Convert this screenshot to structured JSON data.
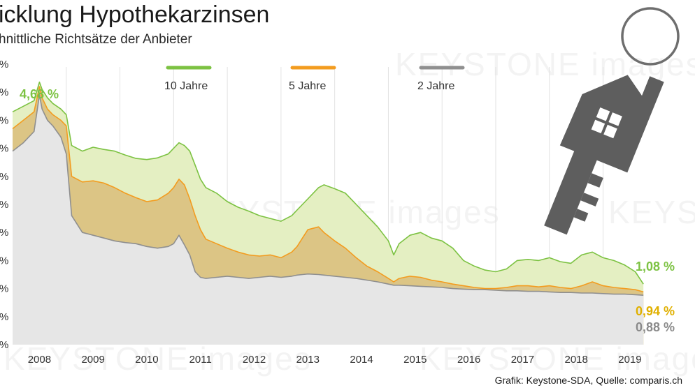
{
  "title": "icklung Hypothekarzinsen",
  "subtitle": "hnittliche Richtsätze der Anbieter",
  "credit": "Grafik: Keystone-SDA, Quelle: comparis.ch",
  "watermark": "KEYSTONE images",
  "y_tick_label": "%",
  "key_icon": "house-key-icon",
  "chart_data": {
    "type": "area",
    "xlabel": "",
    "ylabel": "",
    "xlim": [
      2007.5,
      2019.3
    ],
    "ylim": [
      0.0,
      5.0
    ],
    "categories": [
      "2008",
      "2009",
      "2010",
      "2011",
      "2012",
      "2013",
      "2014",
      "2015",
      "2016",
      "2017",
      "2018",
      "2019"
    ],
    "grid": "vertical",
    "legend_position": "top",
    "series": [
      {
        "name": "10 Jahre",
        "color": "#7cc242",
        "fill": "#e4efc2",
        "x": [
          2007.5,
          2007.7,
          2007.9,
          2008.0,
          2008.05,
          2008.15,
          2008.25,
          2008.4,
          2008.5,
          2008.6,
          2008.8,
          2009.0,
          2009.2,
          2009.4,
          2009.6,
          2009.8,
          2010.0,
          2010.2,
          2010.4,
          2010.5,
          2010.6,
          2010.7,
          2010.8,
          2010.9,
          2011.0,
          2011.1,
          2011.3,
          2011.5,
          2011.7,
          2011.9,
          2012.1,
          2012.3,
          2012.5,
          2012.7,
          2012.8,
          2012.9,
          2013.0,
          2013.2,
          2013.3,
          2013.5,
          2013.7,
          2013.9,
          2014.1,
          2014.3,
          2014.5,
          2014.6,
          2014.7,
          2014.9,
          2015.1,
          2015.3,
          2015.5,
          2015.7,
          2015.9,
          2016.1,
          2016.3,
          2016.5,
          2016.7,
          2016.9,
          2017.1,
          2017.3,
          2017.5,
          2017.7,
          2017.9,
          2018.1,
          2018.3,
          2018.5,
          2018.7,
          2018.9,
          2019.1,
          2019.25
        ],
        "values": [
          4.15,
          4.25,
          4.35,
          4.68,
          4.55,
          4.4,
          4.3,
          4.2,
          4.1,
          3.55,
          3.45,
          3.52,
          3.48,
          3.45,
          3.38,
          3.32,
          3.3,
          3.33,
          3.4,
          3.5,
          3.6,
          3.55,
          3.45,
          3.2,
          2.95,
          2.8,
          2.7,
          2.55,
          2.45,
          2.38,
          2.3,
          2.25,
          2.2,
          2.3,
          2.4,
          2.5,
          2.6,
          2.8,
          2.85,
          2.78,
          2.7,
          2.5,
          2.3,
          2.1,
          1.85,
          1.6,
          1.8,
          1.95,
          2.0,
          1.9,
          1.85,
          1.72,
          1.5,
          1.4,
          1.33,
          1.3,
          1.35,
          1.5,
          1.52,
          1.5,
          1.55,
          1.48,
          1.45,
          1.6,
          1.65,
          1.55,
          1.5,
          1.42,
          1.3,
          1.08
        ]
      },
      {
        "name": "5 Jahre",
        "color": "#f39c1f",
        "fill": "#dcc585",
        "x": [
          2007.5,
          2007.7,
          2007.9,
          2008.0,
          2008.05,
          2008.15,
          2008.25,
          2008.4,
          2008.5,
          2008.6,
          2008.8,
          2009.0,
          2009.2,
          2009.4,
          2009.6,
          2009.8,
          2010.0,
          2010.2,
          2010.4,
          2010.5,
          2010.6,
          2010.7,
          2010.8,
          2010.9,
          2011.0,
          2011.1,
          2011.3,
          2011.5,
          2011.7,
          2011.9,
          2012.1,
          2012.3,
          2012.5,
          2012.7,
          2012.8,
          2012.9,
          2013.0,
          2013.2,
          2013.3,
          2013.5,
          2013.7,
          2013.9,
          2014.1,
          2014.3,
          2014.5,
          2014.6,
          2014.7,
          2014.9,
          2015.1,
          2015.3,
          2015.5,
          2015.7,
          2015.9,
          2016.1,
          2016.3,
          2016.5,
          2016.7,
          2016.9,
          2017.1,
          2017.3,
          2017.5,
          2017.7,
          2017.9,
          2018.1,
          2018.3,
          2018.5,
          2018.7,
          2018.9,
          2019.1,
          2019.25
        ],
        "values": [
          3.85,
          4.0,
          4.15,
          4.6,
          4.4,
          4.2,
          4.1,
          4.0,
          3.9,
          3.0,
          2.9,
          2.92,
          2.88,
          2.8,
          2.7,
          2.62,
          2.55,
          2.58,
          2.7,
          2.8,
          2.95,
          2.85,
          2.6,
          2.3,
          2.05,
          1.88,
          1.8,
          1.72,
          1.65,
          1.6,
          1.58,
          1.6,
          1.55,
          1.65,
          1.75,
          1.9,
          2.05,
          2.1,
          2.0,
          1.85,
          1.72,
          1.55,
          1.4,
          1.3,
          1.18,
          1.12,
          1.18,
          1.22,
          1.2,
          1.15,
          1.12,
          1.08,
          1.05,
          1.02,
          1.0,
          1.0,
          1.02,
          1.05,
          1.05,
          1.03,
          1.05,
          1.02,
          1.0,
          1.05,
          1.12,
          1.05,
          1.02,
          1.0,
          0.98,
          0.94
        ]
      },
      {
        "name": "2 Jahre",
        "color": "#8f8f8f",
        "fill": "#e6e6e6",
        "x": [
          2007.5,
          2007.7,
          2007.9,
          2008.0,
          2008.05,
          2008.15,
          2008.25,
          2008.4,
          2008.5,
          2008.6,
          2008.8,
          2009.0,
          2009.2,
          2009.4,
          2009.6,
          2009.8,
          2010.0,
          2010.2,
          2010.4,
          2010.5,
          2010.6,
          2010.7,
          2010.8,
          2010.9,
          2011.0,
          2011.1,
          2011.3,
          2011.5,
          2011.7,
          2011.9,
          2012.1,
          2012.3,
          2012.5,
          2012.7,
          2012.8,
          2012.9,
          2013.0,
          2013.2,
          2013.3,
          2013.5,
          2013.7,
          2013.9,
          2014.1,
          2014.3,
          2014.5,
          2014.6,
          2014.7,
          2014.9,
          2015.1,
          2015.3,
          2015.5,
          2015.7,
          2015.9,
          2016.1,
          2016.3,
          2016.5,
          2016.7,
          2016.9,
          2017.1,
          2017.3,
          2017.5,
          2017.7,
          2017.9,
          2018.1,
          2018.3,
          2018.5,
          2018.7,
          2018.9,
          2019.1,
          2019.25
        ],
        "values": [
          3.45,
          3.6,
          3.8,
          4.45,
          4.2,
          4.0,
          3.9,
          3.7,
          3.4,
          2.3,
          2.0,
          1.95,
          1.9,
          1.85,
          1.82,
          1.8,
          1.75,
          1.72,
          1.75,
          1.8,
          1.95,
          1.78,
          1.6,
          1.3,
          1.2,
          1.18,
          1.2,
          1.22,
          1.2,
          1.18,
          1.2,
          1.22,
          1.2,
          1.22,
          1.24,
          1.25,
          1.26,
          1.25,
          1.24,
          1.22,
          1.2,
          1.18,
          1.15,
          1.12,
          1.08,
          1.06,
          1.06,
          1.05,
          1.04,
          1.03,
          1.02,
          1.0,
          0.99,
          0.98,
          0.98,
          0.97,
          0.96,
          0.96,
          0.95,
          0.95,
          0.94,
          0.93,
          0.93,
          0.92,
          0.92,
          0.91,
          0.9,
          0.9,
          0.89,
          0.88
        ]
      }
    ],
    "annotations": [
      {
        "text": "4,68 %",
        "x": 2008.0,
        "y": 4.68,
        "color": "#7cc242"
      },
      {
        "text": "1,08 %",
        "x": 2019.25,
        "y": 1.08,
        "color": "#7cc242"
      },
      {
        "text": "0,94 %",
        "x": 2019.25,
        "y": 0.94,
        "color": "#e0b000"
      },
      {
        "text": "0,88 %",
        "x": 2019.25,
        "y": 0.88,
        "color": "#8a8a8a"
      }
    ]
  }
}
